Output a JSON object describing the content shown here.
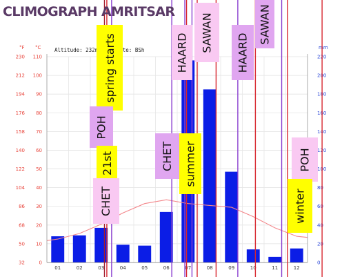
{
  "title": "CLIMOGRAPH AMRITSAR",
  "info": {
    "altitude": "Altitude: 232m",
    "climate": "imate: BSh"
  },
  "chart_data": {
    "type": "bar",
    "categories": [
      "01",
      "02",
      "03",
      "04",
      "05",
      "06",
      "07",
      "08",
      "09",
      "10",
      "11",
      "12"
    ],
    "series": [
      {
        "values": [
          28,
          29,
          37,
          19,
          18,
          54,
          216,
          185,
          97,
          14,
          6,
          15
        ],
        "color": "#0b1de6"
      },
      {
        "type": "line",
        "values": [
          12.5,
          15.5,
          20.5,
          26.5,
          31.5,
          33.5,
          31.5,
          30.5,
          29.5,
          24.5,
          18.5,
          14
        ],
        "color": "#f4878b"
      }
    ],
    "y_fahrenheit": {
      "ticks": [
        32,
        50,
        68,
        86,
        104,
        122,
        140,
        158,
        176,
        194,
        212,
        230
      ],
      "unit": "°F"
    },
    "y_celsius": {
      "ticks": [
        0,
        10,
        20,
        30,
        40,
        50,
        60,
        70,
        80,
        90,
        100,
        110
      ],
      "unit": "°C"
    },
    "y_mm": {
      "ticks": [
        0,
        20,
        40,
        60,
        80,
        100,
        120,
        140,
        160,
        180,
        200,
        220
      ],
      "unit": "mm"
    },
    "ylim_celsius": [
      0,
      110
    ],
    "ylim_mm": [
      0,
      220
    ],
    "grid": true,
    "vertical_lines": [
      {
        "color": "#a21c2c",
        "x_month": 2.65
      },
      {
        "color": "#d7262e",
        "x_month": 2.76
      },
      {
        "color": "#8a3fd0",
        "x_month": 2.98
      },
      {
        "color": "#8a3fd0",
        "x_month": 5.75
      },
      {
        "color": "#8a3fd0",
        "x_month": 6.35
      },
      {
        "color": "#d7262e",
        "x_month": 6.43
      },
      {
        "color": "#8a3fd0",
        "x_month": 6.68
      },
      {
        "color": "#d7262e",
        "x_month": 6.92
      },
      {
        "color": "#d7262e",
        "x_month": 7.79
      },
      {
        "color": "#8a3fd0",
        "x_month": 8.79
      },
      {
        "color": "#d7262e",
        "x_month": 9.6
      },
      {
        "color": "#8a3fd0",
        "x_month": 10.81
      },
      {
        "color": "#d7262e",
        "x_month": 11.08
      },
      {
        "color": "#d7262e",
        "x_month": 12.67
      }
    ]
  },
  "annotations": {
    "spring_starts": {
      "text": "spring starts",
      "bg": "#ffff00"
    },
    "poh_1": {
      "text": "POH",
      "bg": "#e0a6f0"
    },
    "st_21": {
      "text": "21st",
      "bg": "#ffff00"
    },
    "chet_1": {
      "text": "CHET",
      "bg": "#f9c9f2"
    },
    "haard_1": {
      "text": "HAARD",
      "bg": "#f9c9f2"
    },
    "sawan_1": {
      "text": "SAWAN",
      "bg": "#f9c9f2"
    },
    "chet_2": {
      "text": "CHET",
      "bg": "#e0a6f0"
    },
    "summer": {
      "text": "summer",
      "bg": "#ffff00"
    },
    "haard_2": {
      "text": "HAARD",
      "bg": "#e0a6f0"
    },
    "sawan_2": {
      "text": "SAWAN",
      "bg": "#e0a6f0"
    },
    "poh_2": {
      "text": "POH",
      "bg": "#f9c9f2"
    },
    "winter": {
      "text": "winter",
      "bg": "#ffff00"
    }
  }
}
